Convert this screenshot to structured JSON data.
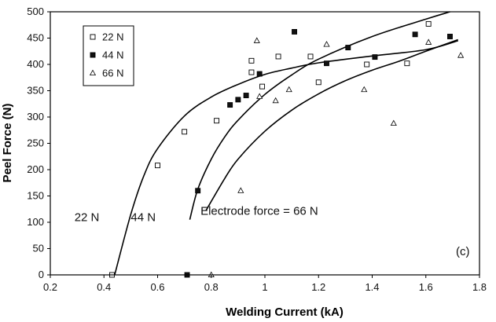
{
  "chart_data": {
    "type": "scatter",
    "xlabel": "Welding Current (kA)",
    "ylabel": "Peel Force (N)",
    "xlim": [
      0.2,
      1.8
    ],
    "ylim": [
      0,
      500
    ],
    "xticks": [
      "0.2",
      "0.4",
      "0.6",
      "0.8",
      "1",
      "1.2",
      "1.4",
      "1.6",
      "1.8"
    ],
    "yticks": [
      "0",
      "50",
      "100",
      "150",
      "200",
      "250",
      "300",
      "350",
      "400",
      "450",
      "500"
    ],
    "grid": false,
    "legend_position": "top-left",
    "panel_label": "(c)",
    "series": [
      {
        "name": "22 N",
        "marker": "open-square",
        "points": [
          [
            0.43,
            0
          ],
          [
            0.6,
            208
          ],
          [
            0.7,
            272
          ],
          [
            0.82,
            293
          ],
          [
            0.95,
            407
          ],
          [
            0.95,
            385
          ],
          [
            0.99,
            358
          ],
          [
            1.05,
            415
          ],
          [
            1.17,
            415
          ],
          [
            1.2,
            366
          ],
          [
            1.38,
            400
          ],
          [
            1.53,
            402
          ],
          [
            1.61,
            477
          ]
        ]
      },
      {
        "name": "44 N",
        "marker": "filled-square",
        "points": [
          [
            0.71,
            0
          ],
          [
            0.75,
            160
          ],
          [
            0.87,
            323
          ],
          [
            0.9,
            333
          ],
          [
            0.93,
            341
          ],
          [
            0.98,
            382
          ],
          [
            1.11,
            462
          ],
          [
            1.23,
            402
          ],
          [
            1.31,
            432
          ],
          [
            1.41,
            414
          ],
          [
            1.56,
            457
          ],
          [
            1.69,
            453
          ]
        ]
      },
      {
        "name": "66 N",
        "marker": "open-triangle",
        "points": [
          [
            0.8,
            0
          ],
          [
            0.91,
            160
          ],
          [
            0.97,
            445
          ],
          [
            0.98,
            339
          ],
          [
            1.04,
            331
          ],
          [
            1.09,
            352
          ],
          [
            1.23,
            438
          ],
          [
            1.37,
            352
          ],
          [
            1.48,
            288
          ],
          [
            1.61,
            442
          ],
          [
            1.73,
            417
          ]
        ]
      }
    ],
    "curves": [
      {
        "label": "22 N",
        "points": [
          [
            0.44,
            0
          ],
          [
            0.5,
            115
          ],
          [
            0.55,
            190
          ],
          [
            0.6,
            240
          ],
          [
            0.7,
            302
          ],
          [
            0.8,
            338
          ],
          [
            0.9,
            362
          ],
          [
            1.0,
            381
          ],
          [
            1.1,
            393
          ],
          [
            1.2,
            403
          ],
          [
            1.4,
            416
          ],
          [
            1.6,
            428
          ],
          [
            1.72,
            445
          ]
        ]
      },
      {
        "label": "44 N",
        "points": [
          [
            0.72,
            105
          ],
          [
            0.75,
            163
          ],
          [
            0.8,
            220
          ],
          [
            0.85,
            262
          ],
          [
            0.9,
            294
          ],
          [
            1.0,
            343
          ],
          [
            1.1,
            380
          ],
          [
            1.2,
            410
          ],
          [
            1.4,
            453
          ],
          [
            1.6,
            486
          ],
          [
            1.69,
            500
          ]
        ]
      },
      {
        "label": "Electrode force = 66 N",
        "points": [
          [
            0.78,
            122
          ],
          [
            0.85,
            183
          ],
          [
            0.9,
            220
          ],
          [
            1.0,
            273
          ],
          [
            1.1,
            313
          ],
          [
            1.2,
            344
          ],
          [
            1.3,
            369
          ],
          [
            1.4,
            389
          ],
          [
            1.5,
            406
          ],
          [
            1.6,
            425
          ],
          [
            1.72,
            447
          ]
        ]
      }
    ],
    "annotations": [
      {
        "text": "22 N",
        "x": 0.29,
        "y": 110
      },
      {
        "text": "44 N",
        "x": 0.5,
        "y": 110
      },
      {
        "text": "Electrode force = 66 N",
        "x": 0.76,
        "y": 122
      }
    ]
  }
}
